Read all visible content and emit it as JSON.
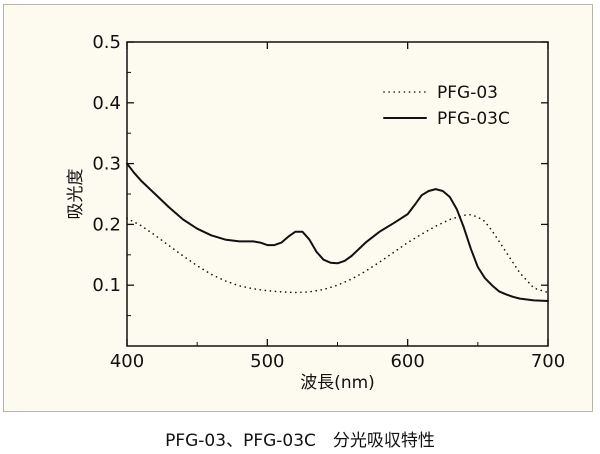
{
  "chart_data": {
    "type": "line",
    "title": "",
    "xlabel": "波長(nm)",
    "ylabel": "吸光度",
    "xlim": [
      400,
      700
    ],
    "ylim": [
      0,
      0.5
    ],
    "x_ticks": [
      400,
      500,
      600,
      700
    ],
    "y_ticks": [
      0.1,
      0.2,
      0.3,
      0.4,
      0.5
    ],
    "x_tick_labels": [
      "400",
      "500",
      "600",
      "700"
    ],
    "y_tick_labels": [
      "0.1",
      "0.2",
      "0.3",
      "0.4",
      "0.5"
    ],
    "grid": false,
    "legend_position": "top-right",
    "series": [
      {
        "name": "PFG-03",
        "style": "dotted",
        "x": [
          400,
          410,
          420,
          430,
          440,
          450,
          460,
          470,
          480,
          490,
          500,
          510,
          520,
          530,
          540,
          550,
          560,
          570,
          580,
          590,
          600,
          610,
          620,
          630,
          640,
          645,
          650,
          655,
          660,
          670,
          680,
          690,
          700
        ],
        "y": [
          0.21,
          0.198,
          0.182,
          0.165,
          0.148,
          0.132,
          0.118,
          0.107,
          0.099,
          0.094,
          0.091,
          0.089,
          0.088,
          0.089,
          0.093,
          0.1,
          0.11,
          0.123,
          0.138,
          0.154,
          0.17,
          0.184,
          0.197,
          0.208,
          0.215,
          0.216,
          0.212,
          0.205,
          0.19,
          0.155,
          0.12,
          0.095,
          0.088
        ]
      },
      {
        "name": "PFG-03C",
        "style": "solid",
        "x": [
          400,
          405,
          410,
          420,
          430,
          440,
          450,
          460,
          470,
          480,
          490,
          495,
          500,
          505,
          510,
          515,
          520,
          525,
          530,
          535,
          540,
          545,
          550,
          555,
          560,
          570,
          580,
          590,
          600,
          605,
          610,
          615,
          620,
          625,
          630,
          635,
          640,
          645,
          650,
          655,
          660,
          665,
          670,
          675,
          680,
          690,
          700
        ],
        "y": [
          0.3,
          0.285,
          0.272,
          0.25,
          0.228,
          0.208,
          0.193,
          0.182,
          0.175,
          0.172,
          0.172,
          0.17,
          0.166,
          0.166,
          0.17,
          0.18,
          0.188,
          0.188,
          0.175,
          0.155,
          0.142,
          0.137,
          0.136,
          0.14,
          0.148,
          0.17,
          0.188,
          0.202,
          0.217,
          0.232,
          0.248,
          0.255,
          0.258,
          0.255,
          0.245,
          0.225,
          0.195,
          0.16,
          0.13,
          0.112,
          0.1,
          0.09,
          0.085,
          0.081,
          0.078,
          0.075,
          0.074
        ]
      }
    ]
  },
  "caption": "PFG-03、PFG-03C　分光吸収特性",
  "colors": {
    "line": "#111111",
    "panel_bg": "#fdfbf0",
    "panel_border": "#b9b5a6"
  }
}
